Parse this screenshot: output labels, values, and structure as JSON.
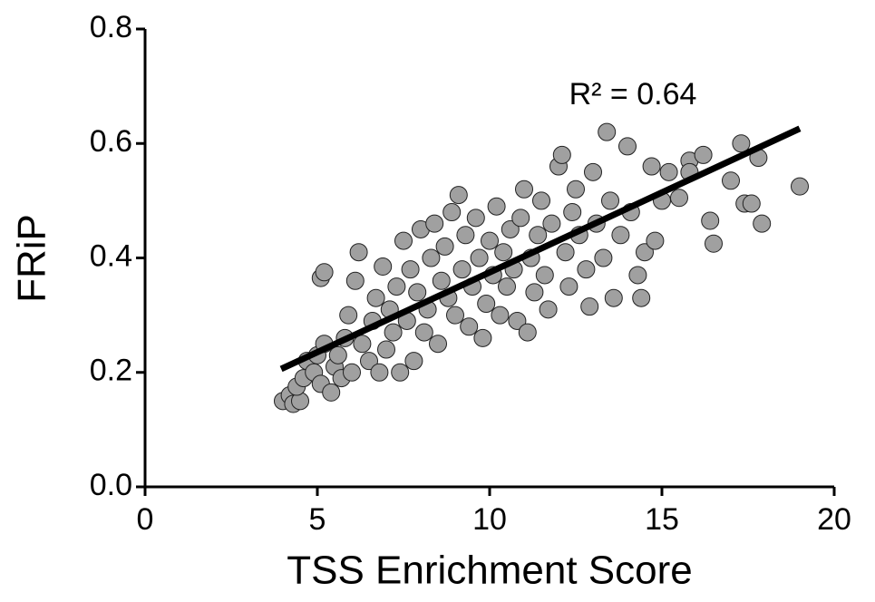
{
  "chart_data": {
    "type": "scatter",
    "x_label": "TSS Enrichment Score",
    "y_label": "FRiP",
    "annotation": "R² = 0.64",
    "color": "#a0a0a0",
    "xlim": [
      0,
      20
    ],
    "xticks": [
      0,
      5,
      10,
      15,
      20
    ],
    "ylim": [
      0,
      0.8
    ],
    "yticks": [
      {
        "value": 0,
        "label": "0.0"
      },
      0.2,
      0.4,
      0.6,
      0.8
    ],
    "grid": false,
    "x": [
      4.0,
      4.2,
      4.3,
      4.5,
      4.4,
      4.6,
      4.7,
      4.9,
      5.0,
      5.1,
      5.2,
      5.1,
      5.2,
      5.5,
      5.4,
      5.6,
      5.7,
      5.8,
      5.9,
      6.0,
      6.1,
      6.2,
      6.3,
      6.5,
      6.6,
      6.7,
      6.8,
      6.9,
      7.0,
      7.1,
      7.2,
      7.3,
      7.4,
      7.5,
      7.6,
      7.7,
      7.8,
      7.9,
      8.0,
      8.1,
      8.2,
      8.3,
      8.4,
      8.5,
      8.6,
      8.7,
      8.8,
      8.9,
      9.0,
      9.1,
      9.2,
      9.3,
      9.4,
      9.5,
      9.6,
      9.7,
      9.8,
      9.9,
      10.0,
      10.1,
      10.2,
      10.3,
      10.4,
      10.5,
      10.6,
      10.7,
      10.8,
      10.9,
      11.0,
      11.1,
      11.2,
      11.3,
      11.4,
      11.5,
      11.6,
      11.7,
      11.8,
      12.0,
      12.1,
      12.2,
      12.3,
      12.4,
      12.5,
      12.6,
      12.8,
      12.9,
      13.0,
      13.1,
      13.3,
      13.4,
      13.5,
      13.6,
      13.8,
      14.0,
      14.1,
      14.3,
      14.4,
      14.5,
      14.7,
      14.8,
      15.0,
      15.2,
      15.5,
      15.8,
      16.2,
      16.4,
      16.5,
      17.0,
      17.3,
      17.4,
      17.6,
      17.8,
      17.9,
      19.0,
      15.8
    ],
    "values": [
      0.15,
      0.16,
      0.145,
      0.15,
      0.175,
      0.19,
      0.22,
      0.2,
      0.23,
      0.18,
      0.25,
      0.365,
      0.375,
      0.21,
      0.165,
      0.23,
      0.19,
      0.26,
      0.3,
      0.2,
      0.36,
      0.41,
      0.25,
      0.22,
      0.29,
      0.33,
      0.2,
      0.385,
      0.24,
      0.31,
      0.27,
      0.35,
      0.2,
      0.43,
      0.29,
      0.38,
      0.22,
      0.34,
      0.45,
      0.27,
      0.31,
      0.4,
      0.46,
      0.25,
      0.36,
      0.42,
      0.33,
      0.48,
      0.3,
      0.51,
      0.38,
      0.44,
      0.28,
      0.35,
      0.47,
      0.4,
      0.26,
      0.32,
      0.43,
      0.37,
      0.49,
      0.3,
      0.41,
      0.35,
      0.45,
      0.38,
      0.29,
      0.47,
      0.52,
      0.27,
      0.4,
      0.34,
      0.44,
      0.5,
      0.37,
      0.31,
      0.46,
      0.56,
      0.58,
      0.41,
      0.35,
      0.48,
      0.52,
      0.44,
      0.38,
      0.315,
      0.55,
      0.46,
      0.4,
      0.62,
      0.5,
      0.33,
      0.44,
      0.595,
      0.48,
      0.37,
      0.33,
      0.41,
      0.56,
      0.43,
      0.5,
      0.55,
      0.505,
      0.57,
      0.58,
      0.465,
      0.425,
      0.535,
      0.6,
      0.495,
      0.495,
      0.575,
      0.46,
      0.525,
      0.55
    ],
    "fit_line": {
      "x": [
        3.95,
        19.0
      ],
      "y": [
        0.206,
        0.626
      ],
      "color": "#000000"
    }
  }
}
